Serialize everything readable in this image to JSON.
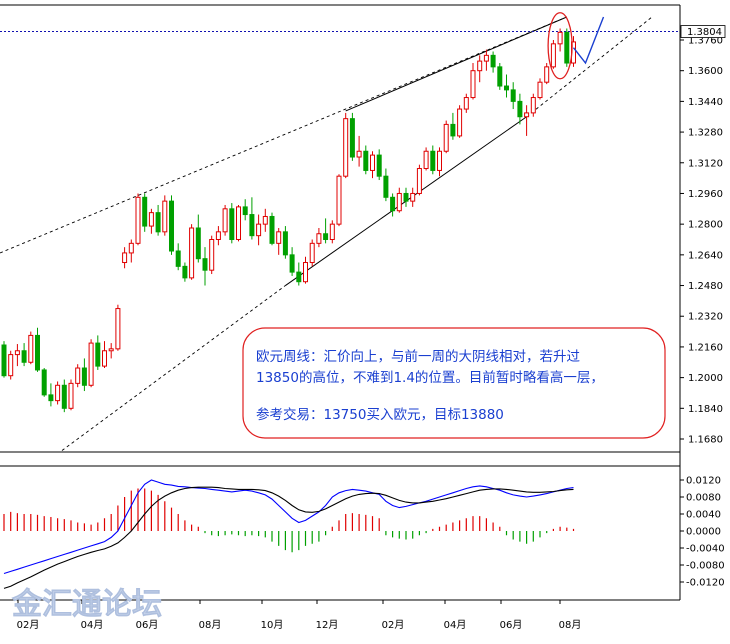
{
  "chart_data": [
    {
      "type": "candlestick",
      "panel": "price",
      "ylim": [
        1.156,
        1.388
      ],
      "y_ticks": [
        1.168,
        1.184,
        1.2,
        1.216,
        1.232,
        1.248,
        1.264,
        1.28,
        1.296,
        1.312,
        1.328,
        1.344,
        1.36,
        1.376
      ],
      "current_price": 1.3804,
      "colors": {
        "up": "#e00000",
        "down": "#00a000",
        "trendline": "#000000",
        "current_line": "#1010b0",
        "arrow": "#1a3fd0",
        "highlight": "#e02020"
      },
      "candles": [
        [
          1.217,
          1.219,
          1.2,
          1.201
        ],
        [
          1.201,
          1.214,
          1.199,
          1.212
        ],
        [
          1.212,
          1.2175,
          1.206,
          1.214
        ],
        [
          1.214,
          1.218,
          1.206,
          1.208
        ],
        [
          1.208,
          1.224,
          1.207,
          1.222
        ],
        [
          1.222,
          1.226,
          1.203,
          1.204
        ],
        [
          1.204,
          1.205,
          1.19,
          1.191
        ],
        [
          1.191,
          1.197,
          1.185,
          1.188
        ],
        [
          1.188,
          1.198,
          1.186,
          1.196
        ],
        [
          1.196,
          1.199,
          1.182,
          1.184
        ],
        [
          1.184,
          1.199,
          1.183,
          1.197
        ],
        [
          1.197,
          1.207,
          1.195,
          1.205
        ],
        [
          1.205,
          1.21,
          1.193,
          1.196
        ],
        [
          1.196,
          1.22,
          1.195,
          1.218
        ],
        [
          1.218,
          1.222,
          1.204,
          1.206
        ],
        [
          1.206,
          1.219,
          1.205,
          1.214
        ],
        [
          1.214,
          1.218,
          1.21,
          1.215
        ],
        [
          1.215,
          1.238,
          1.214,
          1.236
        ],
        [
          1.26,
          1.268,
          1.257,
          1.265
        ],
        [
          1.265,
          1.272,
          1.26,
          1.27
        ],
        [
          1.27,
          1.296,
          1.269,
          1.294
        ],
        [
          1.294,
          1.296,
          1.276,
          1.279
        ],
        [
          1.279,
          1.288,
          1.275,
          1.286
        ],
        [
          1.286,
          1.29,
          1.274,
          1.276
        ],
        [
          1.276,
          1.295,
          1.274,
          1.292
        ],
        [
          1.292,
          1.295,
          1.264,
          1.266
        ],
        [
          1.266,
          1.27,
          1.256,
          1.258
        ],
        [
          1.258,
          1.26,
          1.25,
          1.252
        ],
        [
          1.252,
          1.28,
          1.251,
          1.278
        ],
        [
          1.278,
          1.285,
          1.26,
          1.262
        ],
        [
          1.262,
          1.268,
          1.248,
          1.256
        ],
        [
          1.256,
          1.274,
          1.254,
          1.272
        ],
        [
          1.272,
          1.279,
          1.269,
          1.276
        ],
        [
          1.276,
          1.29,
          1.274,
          1.288
        ],
        [
          1.288,
          1.291,
          1.27,
          1.272
        ],
        [
          1.272,
          1.29,
          1.271,
          1.289
        ],
        [
          1.289,
          1.293,
          1.282,
          1.285
        ],
        [
          1.285,
          1.294,
          1.272,
          1.274
        ],
        [
          1.274,
          1.285,
          1.269,
          1.28
        ],
        [
          1.28,
          1.288,
          1.276,
          1.284
        ],
        [
          1.284,
          1.286,
          1.269,
          1.27
        ],
        [
          1.27,
          1.278,
          1.264,
          1.276
        ],
        [
          1.276,
          1.279,
          1.262,
          1.264
        ],
        [
          1.264,
          1.268,
          1.253,
          1.255
        ],
        [
          1.255,
          1.26,
          1.248,
          1.25
        ],
        [
          1.25,
          1.263,
          1.249,
          1.26
        ],
        [
          1.26,
          1.272,
          1.258,
          1.27
        ],
        [
          1.27,
          1.278,
          1.268,
          1.275
        ],
        [
          1.275,
          1.283,
          1.27,
          1.272
        ],
        [
          1.272,
          1.282,
          1.27,
          1.28
        ],
        [
          1.28,
          1.306,
          1.279,
          1.305
        ],
        [
          1.305,
          1.338,
          1.304,
          1.335
        ],
        [
          1.335,
          1.338,
          1.313,
          1.315
        ],
        [
          1.315,
          1.326,
          1.31,
          1.318
        ],
        [
          1.318,
          1.321,
          1.306,
          1.308
        ],
        [
          1.308,
          1.318,
          1.304,
          1.316
        ],
        [
          1.316,
          1.319,
          1.303,
          1.305
        ],
        [
          1.305,
          1.309,
          1.292,
          1.294
        ],
        [
          1.294,
          1.296,
          1.284,
          1.287
        ],
        [
          1.287,
          1.299,
          1.286,
          1.296
        ],
        [
          1.296,
          1.299,
          1.289,
          1.292
        ],
        [
          1.292,
          1.299,
          1.289,
          1.296
        ],
        [
          1.296,
          1.311,
          1.295,
          1.309
        ],
        [
          1.309,
          1.32,
          1.308,
          1.318
        ],
        [
          1.318,
          1.321,
          1.306,
          1.308
        ],
        [
          1.308,
          1.32,
          1.305,
          1.318
        ],
        [
          1.318,
          1.334,
          1.317,
          1.332
        ],
        [
          1.332,
          1.338,
          1.324,
          1.326
        ],
        [
          1.326,
          1.342,
          1.325,
          1.34
        ],
        [
          1.34,
          1.348,
          1.338,
          1.346
        ],
        [
          1.346,
          1.364,
          1.345,
          1.36
        ],
        [
          1.36,
          1.368,
          1.354,
          1.365
        ],
        [
          1.365,
          1.371,
          1.36,
          1.368
        ],
        [
          1.368,
          1.37,
          1.359,
          1.362
        ],
        [
          1.362,
          1.364,
          1.35,
          1.352
        ],
        [
          1.352,
          1.358,
          1.346,
          1.35
        ],
        [
          1.35,
          1.354,
          1.34,
          1.344
        ],
        [
          1.344,
          1.348,
          1.332,
          1.336
        ],
        [
          1.336,
          1.342,
          1.326,
          1.338
        ],
        [
          1.338,
          1.348,
          1.336,
          1.346
        ],
        [
          1.346,
          1.356,
          1.345,
          1.354
        ],
        [
          1.354,
          1.364,
          1.353,
          1.362
        ],
        [
          1.362,
          1.376,
          1.361,
          1.374
        ],
        [
          1.374,
          1.382,
          1.37,
          1.38
        ],
        [
          1.38,
          1.382,
          1.362,
          1.364
        ],
        [
          1.364,
          1.378,
          1.362,
          1.375
        ]
      ]
    },
    {
      "type": "macd",
      "panel": "indicator",
      "ylim": [
        -0.0135,
        0.0135
      ],
      "y_ticks": [
        0.012,
        0.008,
        0.004,
        0.0,
        -0.004,
        -0.008,
        -0.012
      ],
      "histogram": [
        0.004,
        0.0045,
        0.0042,
        0.004,
        0.004,
        0.0038,
        0.0035,
        0.0033,
        0.003,
        0.0028,
        0.0025,
        0.002,
        0.0018,
        0.0015,
        0.002,
        0.003,
        0.004,
        0.006,
        0.008,
        0.0095,
        0.01,
        0.01,
        0.0095,
        0.0085,
        0.007,
        0.0055,
        0.004,
        0.0025,
        0.0015,
        0.001,
        -0.0005,
        -0.001,
        -0.0012,
        -0.001,
        -0.0008,
        -0.001,
        -0.0012,
        -0.001,
        -0.0012,
        -0.0015,
        -0.0025,
        -0.0035,
        -0.0045,
        -0.005,
        -0.0045,
        -0.0035,
        -0.003,
        -0.0025,
        -0.001,
        0.001,
        0.0025,
        0.004,
        0.0042,
        0.004,
        0.0038,
        0.0035,
        0.003,
        -0.001,
        -0.0015,
        -0.0018,
        -0.002,
        -0.0018,
        -0.001,
        -0.0005,
        0.0005,
        0.001,
        0.0015,
        0.002,
        0.0025,
        0.003,
        0.0035,
        0.0035,
        0.003,
        0.002,
        0.001,
        -0.001,
        -0.002,
        -0.0025,
        -0.003,
        -0.0025,
        -0.0015,
        -0.0005,
        0.0005,
        0.001,
        0.0008,
        0.0005
      ],
      "series": [
        {
          "name": "",
          "color": "#0000ff",
          "values": [
            -0.01,
            -0.0095,
            -0.009,
            -0.0085,
            -0.008,
            -0.0075,
            -0.007,
            -0.0065,
            -0.006,
            -0.0055,
            -0.005,
            -0.0045,
            -0.004,
            -0.0035,
            -0.003,
            -0.0025,
            -0.0015,
            0.0,
            0.003,
            0.006,
            0.009,
            0.011,
            0.012,
            0.0115,
            0.011,
            0.0108,
            0.0105,
            0.0104,
            0.0102,
            0.0101,
            0.01,
            0.0098,
            0.0096,
            0.0094,
            0.0092,
            0.0094,
            0.0096,
            0.0094,
            0.009,
            0.0085,
            0.0075,
            0.006,
            0.0045,
            0.003,
            0.002,
            0.0025,
            0.0035,
            0.0045,
            0.006,
            0.008,
            0.009,
            0.0095,
            0.0098,
            0.0096,
            0.0094,
            0.009,
            0.0086,
            0.007,
            0.006,
            0.0055,
            0.0058,
            0.0062,
            0.0066,
            0.007,
            0.0075,
            0.008,
            0.0085,
            0.009,
            0.0095,
            0.01,
            0.0104,
            0.0106,
            0.0104,
            0.01,
            0.0096,
            0.009,
            0.0085,
            0.0082,
            0.008,
            0.0082,
            0.0085,
            0.0088,
            0.0092,
            0.0096,
            0.01,
            0.0102
          ]
        },
        {
          "name": "",
          "color": "#000000",
          "values": [
            -0.014,
            -0.013,
            -0.0122,
            -0.0115,
            -0.0108,
            -0.01,
            -0.0092,
            -0.0085,
            -0.0078,
            -0.0072,
            -0.0066,
            -0.006,
            -0.0055,
            -0.005,
            -0.0046,
            -0.0042,
            -0.0036,
            -0.0028,
            -0.0015,
            0.0,
            0.002,
            0.004,
            0.0058,
            0.0072,
            0.0082,
            0.009,
            0.0096,
            0.01,
            0.0102,
            0.0103,
            0.0103,
            0.0103,
            0.0102,
            0.01,
            0.0099,
            0.0098,
            0.0098,
            0.0098,
            0.0097,
            0.0095,
            0.009,
            0.0082,
            0.0072,
            0.006,
            0.005,
            0.0045,
            0.0044,
            0.0046,
            0.0052,
            0.006,
            0.0068,
            0.0076,
            0.0082,
            0.0086,
            0.0088,
            0.0089,
            0.0088,
            0.0084,
            0.0078,
            0.0072,
            0.0068,
            0.0066,
            0.0066,
            0.0068,
            0.007,
            0.0073,
            0.0076,
            0.008,
            0.0084,
            0.0088,
            0.0092,
            0.0096,
            0.0098,
            0.0099,
            0.0099,
            0.0098,
            0.0096,
            0.0094,
            0.0092,
            0.0091,
            0.0091,
            0.0092,
            0.0093,
            0.0095,
            0.0097,
            0.0098
          ]
        }
      ]
    }
  ],
  "x_axis": {
    "labels": [
      "02月",
      "04月",
      "06月",
      "08月",
      "10月",
      "12月",
      "02月",
      "04月",
      "06月",
      "08月"
    ]
  },
  "note": {
    "line1": "欧元周线：汇价向上，与前一周的大阴线相对，若升过",
    "line2": "13850的高位，不难到1.4的位置。目前暂时略看高一层，",
    "line3": "参考交易：13750买入欧元，目标13880"
  },
  "watermark": "金汇通论坛"
}
